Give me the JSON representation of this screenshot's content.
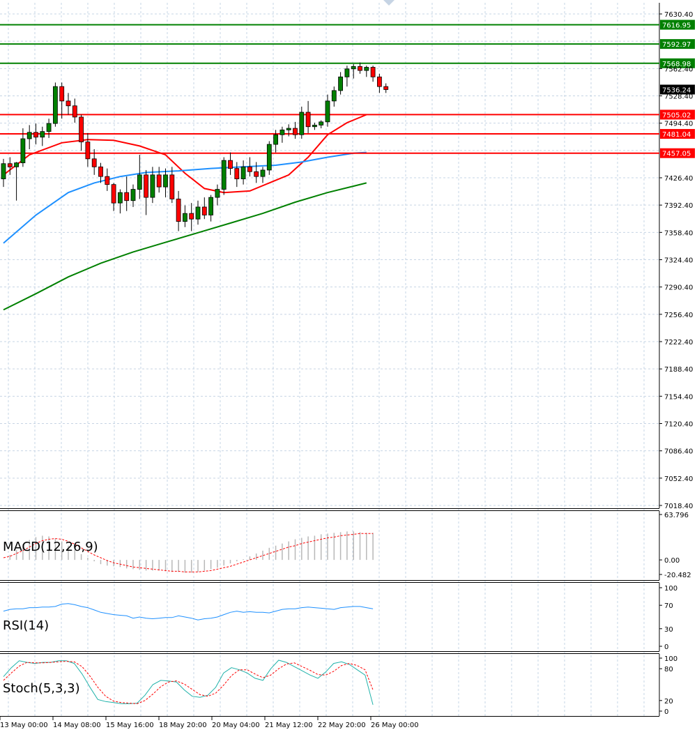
{
  "chart_data": {
    "type": "candlestick",
    "main_panel": {
      "y_ticks": [
        "7630.40",
        "7562.40",
        "7528.40",
        "7494.40",
        "7426.40",
        "7392.40",
        "7358.40",
        "7324.40",
        "7290.40",
        "7256.40",
        "7222.40",
        "7188.40",
        "7154.40",
        "7120.40",
        "7086.40",
        "7052.40",
        "7018.40"
      ],
      "ylim": [
        7018.4,
        7640.0
      ],
      "current_price": {
        "value": 7536.24,
        "label": "7536.24"
      },
      "resistance_lines": [
        {
          "value": 7616.95,
          "label": "7616.95",
          "color": "#008000"
        },
        {
          "value": 7592.97,
          "label": "7592.97",
          "color": "#008000"
        },
        {
          "value": 7568.98,
          "label": "7568.98",
          "color": "#008000"
        }
      ],
      "support_lines": [
        {
          "value": 7505.02,
          "label": "7505.02",
          "color": "#ff0000"
        },
        {
          "value": 7481.04,
          "label": "7481.04",
          "color": "#ff0000"
        },
        {
          "value": 7457.05,
          "label": "7457.05",
          "color": "#ff0000"
        }
      ],
      "candles": [
        {
          "o": 7425,
          "h": 7450,
          "l": 7415,
          "c": 7444
        },
        {
          "o": 7444,
          "h": 7452,
          "l": 7430,
          "c": 7440
        },
        {
          "o": 7440,
          "h": 7446,
          "l": 7398,
          "c": 7445
        },
        {
          "o": 7445,
          "h": 7488,
          "l": 7440,
          "c": 7475
        },
        {
          "o": 7475,
          "h": 7492,
          "l": 7462,
          "c": 7483
        },
        {
          "o": 7483,
          "h": 7494,
          "l": 7468,
          "c": 7477
        },
        {
          "o": 7477,
          "h": 7490,
          "l": 7466,
          "c": 7484
        },
        {
          "o": 7484,
          "h": 7500,
          "l": 7476,
          "c": 7494
        },
        {
          "o": 7494,
          "h": 7545,
          "l": 7490,
          "c": 7540
        },
        {
          "o": 7540,
          "h": 7545,
          "l": 7500,
          "c": 7522
        },
        {
          "o": 7522,
          "h": 7532,
          "l": 7505,
          "c": 7516
        },
        {
          "o": 7516,
          "h": 7525,
          "l": 7495,
          "c": 7502
        },
        {
          "o": 7502,
          "h": 7505,
          "l": 7460,
          "c": 7471
        },
        {
          "o": 7471,
          "h": 7482,
          "l": 7440,
          "c": 7450
        },
        {
          "o": 7450,
          "h": 7462,
          "l": 7430,
          "c": 7440
        },
        {
          "o": 7440,
          "h": 7445,
          "l": 7420,
          "c": 7428
        },
        {
          "o": 7428,
          "h": 7438,
          "l": 7410,
          "c": 7418
        },
        {
          "o": 7418,
          "h": 7420,
          "l": 7385,
          "c": 7395
        },
        {
          "o": 7395,
          "h": 7412,
          "l": 7382,
          "c": 7408
        },
        {
          "o": 7408,
          "h": 7428,
          "l": 7385,
          "c": 7398
        },
        {
          "o": 7398,
          "h": 7418,
          "l": 7390,
          "c": 7412
        },
        {
          "o": 7412,
          "h": 7455,
          "l": 7400,
          "c": 7430
        },
        {
          "o": 7430,
          "h": 7436,
          "l": 7380,
          "c": 7402
        },
        {
          "o": 7402,
          "h": 7440,
          "l": 7395,
          "c": 7430
        },
        {
          "o": 7430,
          "h": 7440,
          "l": 7408,
          "c": 7415
        },
        {
          "o": 7415,
          "h": 7438,
          "l": 7402,
          "c": 7430
        },
        {
          "o": 7430,
          "h": 7440,
          "l": 7395,
          "c": 7400
        },
        {
          "o": 7400,
          "h": 7410,
          "l": 7360,
          "c": 7372
        },
        {
          "o": 7372,
          "h": 7392,
          "l": 7365,
          "c": 7382
        },
        {
          "o": 7382,
          "h": 7395,
          "l": 7360,
          "c": 7375
        },
        {
          "o": 7375,
          "h": 7398,
          "l": 7368,
          "c": 7390
        },
        {
          "o": 7390,
          "h": 7402,
          "l": 7375,
          "c": 7380
        },
        {
          "o": 7380,
          "h": 7405,
          "l": 7372,
          "c": 7402
        },
        {
          "o": 7402,
          "h": 7418,
          "l": 7392,
          "c": 7412
        },
        {
          "o": 7412,
          "h": 7452,
          "l": 7405,
          "c": 7448
        },
        {
          "o": 7448,
          "h": 7458,
          "l": 7430,
          "c": 7438
        },
        {
          "o": 7438,
          "h": 7446,
          "l": 7415,
          "c": 7425
        },
        {
          "o": 7425,
          "h": 7448,
          "l": 7418,
          "c": 7440
        },
        {
          "o": 7440,
          "h": 7452,
          "l": 7428,
          "c": 7434
        },
        {
          "o": 7434,
          "h": 7446,
          "l": 7420,
          "c": 7428
        },
        {
          "o": 7428,
          "h": 7440,
          "l": 7420,
          "c": 7436
        },
        {
          "o": 7436,
          "h": 7472,
          "l": 7430,
          "c": 7468
        },
        {
          "o": 7468,
          "h": 7486,
          "l": 7458,
          "c": 7480
        },
        {
          "o": 7480,
          "h": 7490,
          "l": 7470,
          "c": 7486
        },
        {
          "o": 7486,
          "h": 7493,
          "l": 7478,
          "c": 7488
        },
        {
          "o": 7488,
          "h": 7496,
          "l": 7475,
          "c": 7480
        },
        {
          "o": 7480,
          "h": 7515,
          "l": 7475,
          "c": 7508
        },
        {
          "o": 7508,
          "h": 7522,
          "l": 7482,
          "c": 7490
        },
        {
          "o": 7490,
          "h": 7495,
          "l": 7486,
          "c": 7492
        },
        {
          "o": 7492,
          "h": 7498,
          "l": 7488,
          "c": 7496
        },
        {
          "o": 7496,
          "h": 7530,
          "l": 7490,
          "c": 7522
        },
        {
          "o": 7522,
          "h": 7540,
          "l": 7515,
          "c": 7535
        },
        {
          "o": 7535,
          "h": 7558,
          "l": 7530,
          "c": 7552
        },
        {
          "o": 7552,
          "h": 7566,
          "l": 7540,
          "c": 7562
        },
        {
          "o": 7562,
          "h": 7568,
          "l": 7550,
          "c": 7565
        },
        {
          "o": 7565,
          "h": 7570,
          "l": 7556,
          "c": 7560
        },
        {
          "o": 7560,
          "h": 7566,
          "l": 7552,
          "c": 7564
        },
        {
          "o": 7564,
          "h": 7566,
          "l": 7546,
          "c": 7552
        },
        {
          "o": 7552,
          "h": 7556,
          "l": 7532,
          "c": 7540
        },
        {
          "o": 7540,
          "h": 7544,
          "l": 7532,
          "c": 7536.24
        }
      ],
      "moving_averages": [
        {
          "color": "#ff0000",
          "points": [
            [
              0,
              7430
            ],
            [
              4,
              7455
            ],
            [
              9,
              7470
            ],
            [
              13,
              7474
            ],
            [
              17,
              7473
            ],
            [
              21,
              7466
            ],
            [
              25,
              7455
            ],
            [
              28,
              7432
            ],
            [
              31,
              7413
            ],
            [
              34,
              7408
            ],
            [
              38,
              7410
            ],
            [
              41,
              7420
            ],
            [
              44,
              7430
            ],
            [
              47,
              7452
            ],
            [
              50,
              7480
            ],
            [
              53,
              7495
            ],
            [
              56,
              7505
            ]
          ]
        },
        {
          "color": "#1e90ff",
          "points": [
            [
              0,
              7345
            ],
            [
              5,
              7380
            ],
            [
              10,
              7408
            ],
            [
              14,
              7420
            ],
            [
              18,
              7428
            ],
            [
              22,
              7433
            ],
            [
              27,
              7435
            ],
            [
              32,
              7438
            ],
            [
              37,
              7440
            ],
            [
              42,
              7442
            ],
            [
              46,
              7446
            ],
            [
              50,
              7452
            ],
            [
              54,
              7457
            ],
            [
              56,
              7458
            ]
          ]
        },
        {
          "color": "#008000",
          "points": [
            [
              0,
              7262
            ],
            [
              5,
              7282
            ],
            [
              10,
              7303
            ],
            [
              15,
              7320
            ],
            [
              20,
              7334
            ],
            [
              25,
              7346
            ],
            [
              30,
              7358
            ],
            [
              35,
              7370
            ],
            [
              40,
              7382
            ],
            [
              45,
              7396
            ],
            [
              50,
              7408
            ],
            [
              56,
              7420
            ]
          ]
        }
      ]
    },
    "macd_panel": {
      "label": "MACD(12,26,9)",
      "y_ticks": [
        "63.796",
        "0.00",
        "-20.482"
      ],
      "ylim": [
        -20.482,
        63.796
      ],
      "histogram": [
        0,
        7,
        14,
        22,
        28,
        32,
        34,
        33,
        30,
        26,
        20,
        14,
        8,
        3,
        -2,
        -6,
        -8,
        -9,
        -10,
        -12,
        -13,
        -14,
        -15,
        -15,
        -15,
        -16,
        -17,
        -17,
        -18,
        -18,
        -17,
        -15,
        -13,
        -11,
        -8,
        -5,
        -2,
        1,
        5,
        9,
        13,
        17,
        20,
        23,
        26,
        29,
        31,
        33,
        34,
        36,
        37,
        38,
        39,
        40,
        40,
        39,
        38,
        38
      ],
      "signal": [
        3,
        5,
        9,
        13,
        18,
        23,
        27,
        29,
        30,
        29,
        26,
        22,
        17,
        12,
        7,
        3,
        -1,
        -4,
        -6,
        -8,
        -10,
        -11,
        -12,
        -13,
        -14,
        -15,
        -16,
        -16,
        -17,
        -17,
        -17,
        -16,
        -15,
        -13,
        -11,
        -9,
        -6,
        -3,
        0,
        3,
        6,
        9,
        12,
        15,
        18,
        20,
        23,
        25,
        27,
        29,
        31,
        32,
        34,
        35,
        36,
        37,
        37,
        37
      ]
    },
    "rsi_panel": {
      "label": "RSI(14)",
      "y_ticks": [
        "100",
        "70",
        "30",
        "0"
      ],
      "ylim": [
        0,
        100
      ],
      "values": [
        60,
        63,
        64,
        64,
        66,
        66,
        67,
        67,
        68,
        72,
        73,
        71,
        68,
        66,
        62,
        58,
        56,
        54,
        53,
        52,
        48,
        50,
        48,
        47,
        48,
        49,
        49,
        52,
        50,
        48,
        45,
        47,
        48,
        50,
        54,
        58,
        60,
        58,
        59,
        58,
        58,
        57,
        60,
        63,
        64,
        64,
        66,
        67,
        66,
        65,
        64,
        63,
        66,
        67,
        68,
        68,
        66,
        64
      ]
    },
    "stoch_panel": {
      "label": "Stoch(5,3,3)",
      "y_ticks": [
        "100",
        "80",
        "20",
        "0"
      ],
      "ylim": [
        0,
        100
      ],
      "k": [
        65,
        82,
        95,
        92,
        90,
        92,
        92,
        95,
        95,
        90,
        70,
        45,
        22,
        18,
        16,
        14,
        14,
        15,
        30,
        50,
        58,
        57,
        55,
        40,
        28,
        26,
        30,
        45,
        72,
        82,
        78,
        72,
        62,
        58,
        80,
        96,
        92,
        84,
        76,
        68,
        62,
        74,
        90,
        93,
        88,
        78,
        68,
        12
      ],
      "d": [
        58,
        72,
        85,
        92,
        91,
        91,
        92,
        93,
        94,
        93,
        84,
        66,
        45,
        28,
        19,
        16,
        15,
        14,
        20,
        32,
        46,
        55,
        57,
        51,
        41,
        31,
        28,
        34,
        49,
        67,
        78,
        78,
        70,
        63,
        68,
        80,
        89,
        91,
        84,
        77,
        69,
        68,
        75,
        86,
        90,
        86,
        78,
        40
      ]
    },
    "x_tick_labels": [
      "13 May 00:00",
      "14 May 08:00",
      "15 May 16:00",
      "18 May 20:00",
      "20 May 04:00",
      "21 May 12:00",
      "22 May 20:00",
      "26 May 00:00"
    ]
  }
}
